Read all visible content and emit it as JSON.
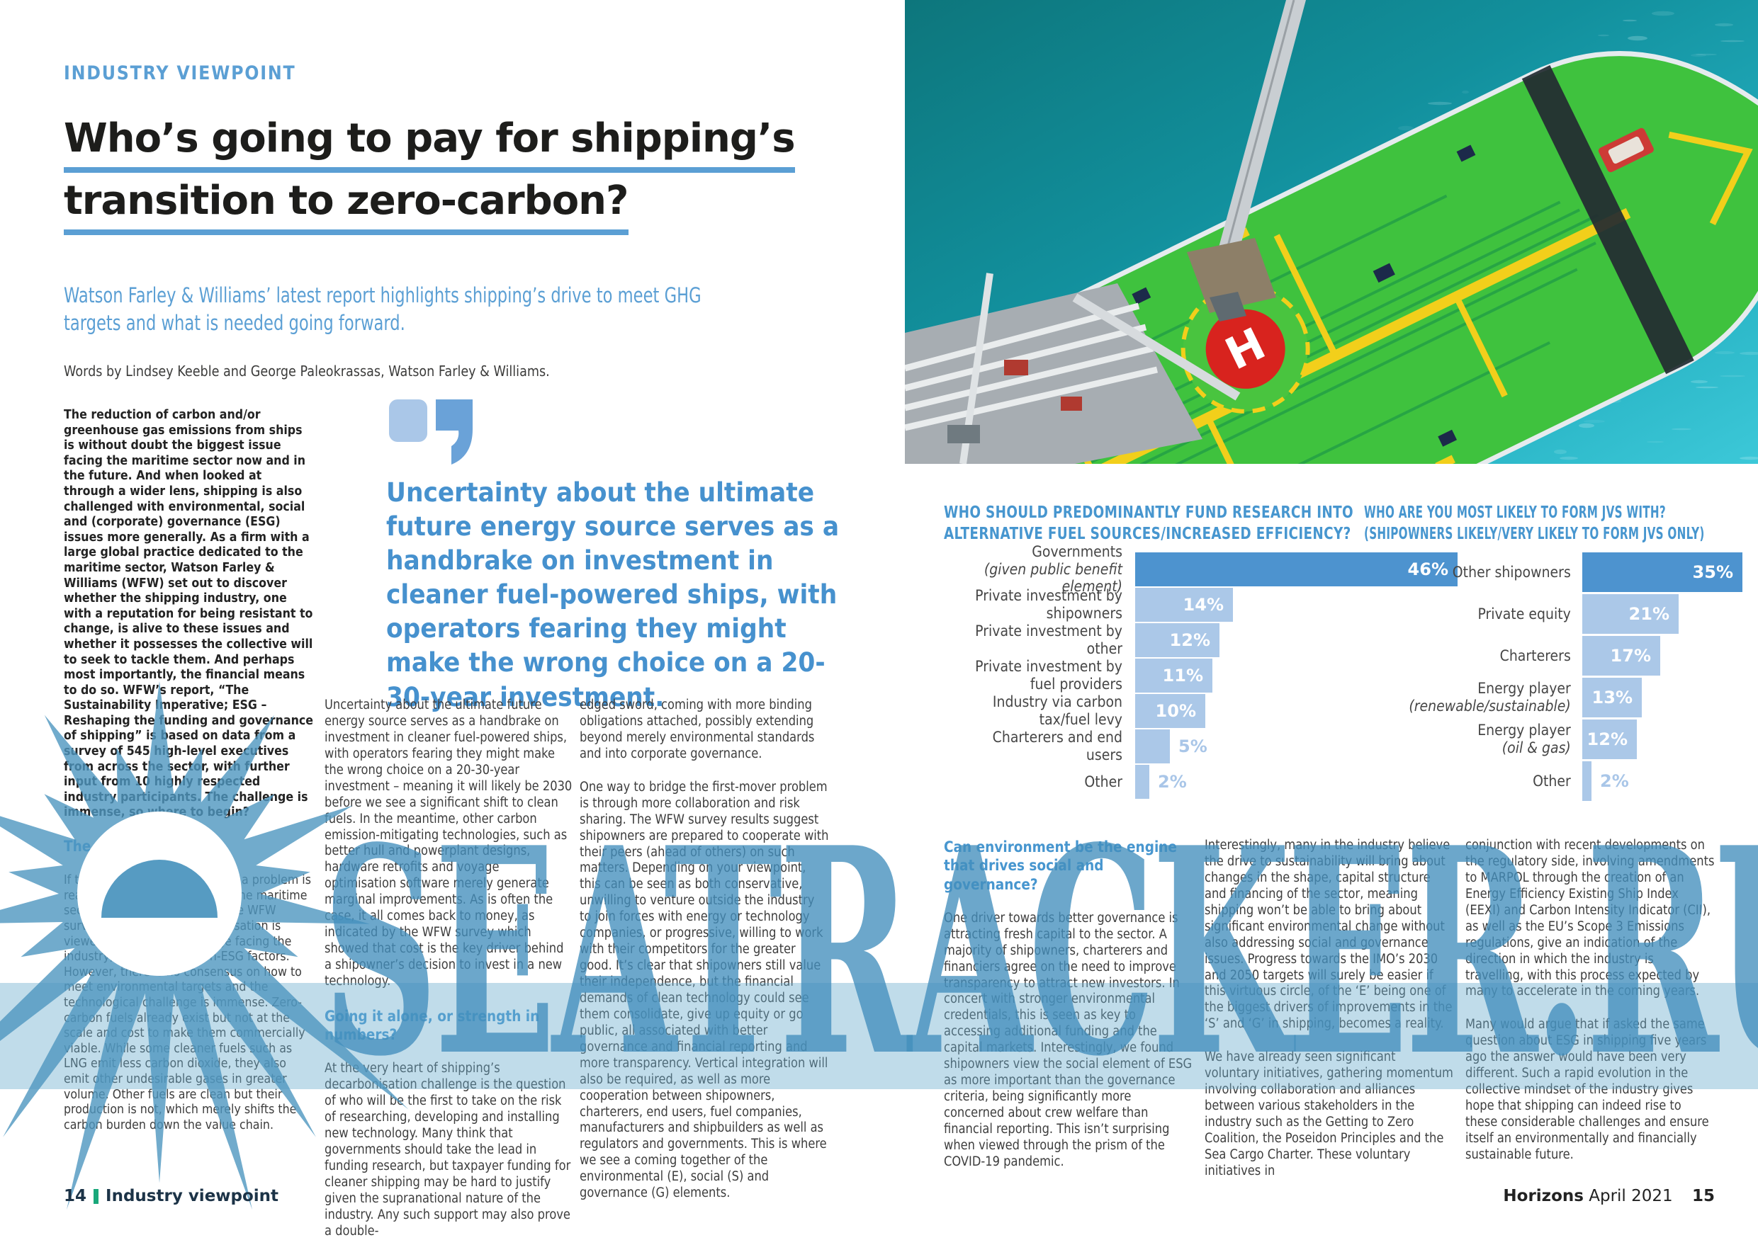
{
  "header": {
    "eyebrow": "INDUSTRY VIEWPOINT",
    "title_line1": "Who’s going to pay for shipping’s",
    "title_line2": "transition to zero-carbon?",
    "subtitle": "Watson Farley & Williams’ latest report highlights shipping’s drive to meet GHG targets and what is needed going forward.",
    "byline": "Words by Lindsey Keeble and George Paleokrassas, Watson Farley & Williams."
  },
  "pull_quote": {
    "text": "Uncertainty about the ultimate future energy source serves as a handbrake on investment in cleaner fuel-powered ships, with operators fearing they might make the wrong choice on a 20-30-year investment."
  },
  "columns": {
    "col1_intro": "The reduction of carbon and/or greenhouse gas emissions from ships is without doubt the biggest issue facing the maritime sector now and in the future. And when looked at through a wider lens, shipping is also challenged with environmental, social and (corporate) governance (ESG) issues more generally. As a firm with a large global practice dedicated to the maritime sector, Watson Farley & Williams (WFW) set out to discover whether the shipping industry, one with a reputation for being resistant to change, is alive to these issues and whether it possesses the collective will to seek to tackle them. And perhaps most importantly, the financial means to do so. WFW’s report, “The Sustainability Imperative; ESG – Reshaping the funding and governance of shipping” is based on data from a survey of 545 high-level executives from across the sector, with further input from 10 highly respected industry participants. The challenge is immense, so where to begin?",
    "heading1": "The first steps",
    "col1_body": "If the first step towards solving a problem is realising you have a problem, the maritime sector is off to a good start. The WFW survey showed that decarbonisation is viewed as the main challenge facing the industry, well ahead of non-ESG factors. However, there is no consensus on how to meet environmental targets and the technological challenge is immense. Zero-carbon fuels already exist but not at the scale and cost to make them commercially viable. While some cleaner fuels such as LNG emit less carbon dioxide, they also emit other undesirable gases in greater volume. Other fuels are clean but their production is not, which merely shifts the carbon burden down the value chain.",
    "col2_p1": "Uncertainty about the ultimate future energy source serves as a handbrake on investment in cleaner fuel-powered ships, with operators fearing they might make the wrong choice on a 20-30-year investment – meaning it will likely be 2030 before we see a significant shift to clean fuels. In the meantime, other carbon emission-mitigating technologies, such as better hull and powerplant designs, hardware retrofits and voyage optimisation software merely generate marginal improvements. As is often the case, it all comes back to money, as indicated by the WFW survey which showed that cost is the key driver behind a shipowner’s decision to invest in a new technology.",
    "heading2": "Going it alone, or strength in numbers?",
    "col2_p2": "At the very heart of shipping’s decarbonisation challenge is the question of who will be the first to take on the risk of researching, developing and installing new technology. Many think that governments should take the lead in funding research, but taxpayer funding for cleaner shipping may be hard to justify given the supranational nature of the industry. Any such support may also prove a double-",
    "col3_p1": "edged sword, coming with more binding obligations attached, possibly extending beyond merely environmental standards and into corporate governance.",
    "col3_p2": "One way to bridge the first-mover problem is through more collaboration and risk sharing. The WFW survey results suggest shipowners are prepared to cooperate with their peers (ahead of others) on such matters. Depending on your viewpoint, this can be seen as both conservative, unwilling to venture outside the industry to join forces with energy or technology companies, or progressive, willing to work with their competitors for the greater good. It’s clear that shipowners still value their independence, but the financial demands of clean technology could see them consolidate, give up equity or go public, all associated with better governance and financial reporting and more transparency. Vertical integration will also be required, as well as more cooperation between shipowners, charterers, end users, fuel companies, manufacturers and shipbuilders as well as regulators and governments. This is where we see a coming together of the environmental (E), social (S) and governance (G) elements.",
    "heading3": "Can environment be the engine that drives social and governance?",
    "col4_p1": "One driver towards better governance is attracting fresh capital to the sector. A majority of shipowners, charterers and financiers agree on the need to improve transparency to attract new investors. In concert with stronger environmental credentials, this is seen as key to accessing additional funding and the capital markets. Interestingly, we found shipowners view the social element of ESG as more important than the governance criteria, being significantly more concerned about crew welfare than financial reporting. This isn’t surprising when viewed through the prism of the COVID-19 pandemic.",
    "col5_p1": "Interestingly, many in the industry believe the drive to sustainability will bring about changes in the shape, capital structure and financing of the sector, meaning shipping won’t be able to bring about significant environmental change without also addressing social and governance issues. Progress towards the IMO’s 2030 and 2050 targets will surely be easier if this virtuous circle, of the ‘E’ being one of the biggest drivers of improvements in the ‘S’ and ‘G’ in shipping, becomes a reality.",
    "col5_p2": "We have already seen significant voluntary initiatives, gathering momentum involving collaboration and alliances between various stakeholders in the industry such as the Getting to Zero Coalition, the Poseidon Principles and the Sea Cargo Charter. These voluntary initiatives in",
    "col6_p1": "conjunction with recent developments on the regulatory side, involving amendments to MARPOL through the creation of an Energy Efficiency Existing Ship Index (EEXI) and Carbon Intensity Indicator (CII), as well as the EU’s Scope 3 Emissions regulations, give an indication of the direction in which the industry is travelling, with this process expected by many to accelerate in the coming years.",
    "col6_p2": "Many would argue that if asked the same question about ESG in shipping five years ago the answer would have been very different. Such a rapid evolution in the collective mindset of the industry gives hope that shipping can indeed rise to these considerable challenges and ensure itself an environmentally and financially sustainable future."
  },
  "chart_data": [
    {
      "type": "bar",
      "orientation": "horizontal",
      "title": "WHO SHOULD PREDOMINANTLY FUND RESEARCH INTO ALTERNATIVE FUEL SOURCES/INCREASED EFFICIENCY?",
      "title_line1": "WHO SHOULD PREDOMINANTLY FUND RESEARCH INTO",
      "title_line2": "ALTERNATIVE FUEL SOURCES/INCREASED EFFICIENCY?",
      "value_suffix": "%",
      "legend": "none",
      "grid": false,
      "rows": [
        {
          "label": "Governments",
          "label_note": "(given public benefit element)",
          "value": 46,
          "emphasis": true
        },
        {
          "label": "Private investment by shipowners",
          "label_note": "",
          "value": 14,
          "emphasis": false
        },
        {
          "label": "Private investment by other",
          "label_note": "",
          "value": 12,
          "emphasis": false
        },
        {
          "label": "Private investment by fuel providers",
          "label_note": "",
          "value": 11,
          "emphasis": false
        },
        {
          "label": "Industry via carbon tax/fuel levy",
          "label_note": "",
          "value": 10,
          "emphasis": false
        },
        {
          "label": "Charterers and end users",
          "label_note": "",
          "value": 5,
          "emphasis": false
        },
        {
          "label": "Other",
          "label_note": "",
          "value": 2,
          "emphasis": false
        }
      ]
    },
    {
      "type": "bar",
      "orientation": "horizontal",
      "title": "WHO ARE YOU MOST LIKELY TO FORM JVS WITH? (SHIPOWNERS LIKELY/VERY LIKELY TO FORM JVS ONLY)",
      "title_line1": "WHO ARE YOU MOST LIKELY TO FORM JVS WITH?",
      "title_line2": "(SHIPOWNERS LIKELY/VERY LIKELY TO FORM JVS ONLY)",
      "value_suffix": "%",
      "legend": "none",
      "grid": false,
      "rows": [
        {
          "label": "Other shipowners",
          "label_note": "",
          "value": 35,
          "emphasis": true
        },
        {
          "label": "Private equity",
          "label_note": "",
          "value": 21,
          "emphasis": false
        },
        {
          "label": "Charterers",
          "label_note": "",
          "value": 17,
          "emphasis": false
        },
        {
          "label": "Energy player",
          "label_note": "(renewable/sustainable)",
          "value": 13,
          "emphasis": false
        },
        {
          "label": "Energy player",
          "label_note": "(oil & gas)",
          "value": 12,
          "emphasis": false
        },
        {
          "label": "Other",
          "label_note": "",
          "value": 2,
          "emphasis": false
        }
      ]
    }
  ],
  "watermark": {
    "text": "SEATRACKER.RU"
  },
  "footers": {
    "left_page_number": "14",
    "left_label": "Industry viewpoint",
    "right_magazine": "Horizons",
    "right_issue": "April 2021",
    "right_page_number": "15"
  },
  "colors": {
    "accent_blue": "#5b9fd4",
    "heading_blue": "#4796cf",
    "bar_dark": "#4d93cf",
    "bar_light": "#abc8e8",
    "value_label_outside": "#a9c6e8",
    "watermark_blue": "#4690bd",
    "footer_green": "#19a87a",
    "deck_green": "#3fc23e",
    "helipad_red": "#d8231e",
    "water_teal": "#12909d"
  }
}
